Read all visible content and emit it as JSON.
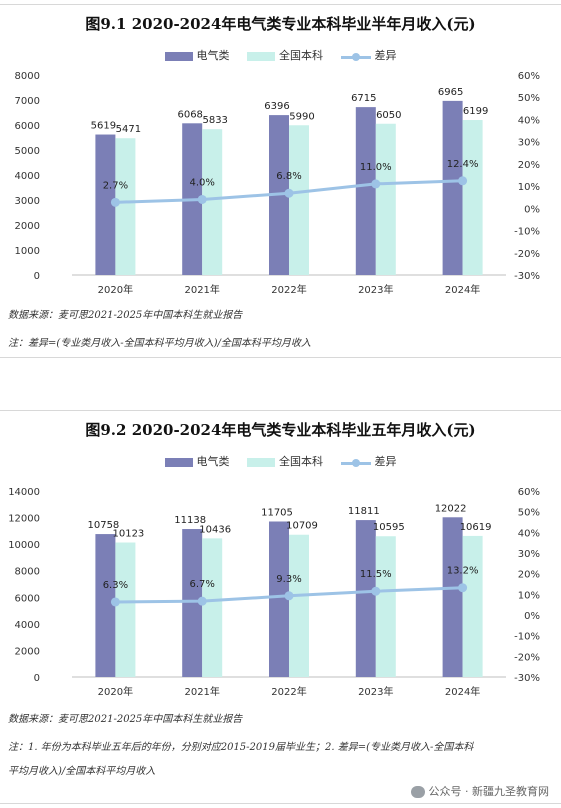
{
  "chart_data": [
    {
      "type": "bar",
      "title": "图9.1 2020-2024年电气类专业本科毕业半年月收入(元)",
      "categories": [
        "2020年",
        "2021年",
        "2022年",
        "2023年",
        "2024年"
      ],
      "series": [
        {
          "name": "电气类",
          "values": [
            5619,
            6068,
            6396,
            6715,
            6965
          ],
          "color": "#7b7fb6"
        },
        {
          "name": "全国本科",
          "values": [
            5471,
            5833,
            5990,
            6050,
            6199
          ],
          "color": "#c8f0ea"
        },
        {
          "name": "差异",
          "type": "line",
          "axis": "right",
          "values": [
            2.7,
            4.0,
            6.8,
            11.0,
            12.4
          ],
          "labels": [
            "2.7%",
            "4.0%",
            "6.8%",
            "11.0%",
            "12.4%"
          ],
          "color": "#9dc3e6"
        }
      ],
      "ylim": [
        0,
        8000
      ],
      "yticks": [
        0,
        1000,
        2000,
        3000,
        4000,
        5000,
        6000,
        7000,
        8000
      ],
      "y2lim": [
        -30,
        60
      ],
      "y2ticks": [
        "-30%",
        "-20%",
        "-10%",
        "0%",
        "10%",
        "20%",
        "30%",
        "40%",
        "50%",
        "60%"
      ],
      "legend_position": "top",
      "grid": false,
      "notes": [
        "数据来源：麦可思2021-2025年中国本科生就业报告",
        "注：差异=(专业类月收入-全国本科平均月收入)/全国本科平均月收入"
      ]
    },
    {
      "type": "bar",
      "title": "图9.2 2020-2024年电气类专业本科毕业五年月收入(元)",
      "categories": [
        "2020年",
        "2021年",
        "2022年",
        "2023年",
        "2024年"
      ],
      "series": [
        {
          "name": "电气类",
          "values": [
            10758,
            11138,
            11705,
            11811,
            12022
          ],
          "color": "#7b7fb6"
        },
        {
          "name": "全国本科",
          "values": [
            10123,
            10436,
            10709,
            10595,
            10619
          ],
          "color": "#c8f0ea"
        },
        {
          "name": "差异",
          "type": "line",
          "axis": "right",
          "values": [
            6.3,
            6.7,
            9.3,
            11.5,
            13.2
          ],
          "labels": [
            "6.3%",
            "6.7%",
            "9.3%",
            "11.5%",
            "13.2%"
          ],
          "color": "#9dc3e6"
        }
      ],
      "ylim": [
        0,
        14000
      ],
      "yticks": [
        0,
        2000,
        4000,
        6000,
        8000,
        10000,
        12000,
        14000
      ],
      "y2lim": [
        -30,
        60
      ],
      "y2ticks": [
        "-30%",
        "-20%",
        "-10%",
        "0%",
        "10%",
        "20%",
        "30%",
        "40%",
        "50%",
        "60%"
      ],
      "legend_position": "top",
      "grid": false,
      "notes": [
        "数据来源：麦可思2021-2025年中国本科生就业报告",
        "注：1. 年份为本科毕业五年后的年份，分别对应2015-2019届毕业生；2. 差异=(专业类月收入-全国本科",
        "平均月收入)/全国本科平均月收入"
      ]
    }
  ],
  "watermark": "公众号 · 新疆九圣教育网"
}
